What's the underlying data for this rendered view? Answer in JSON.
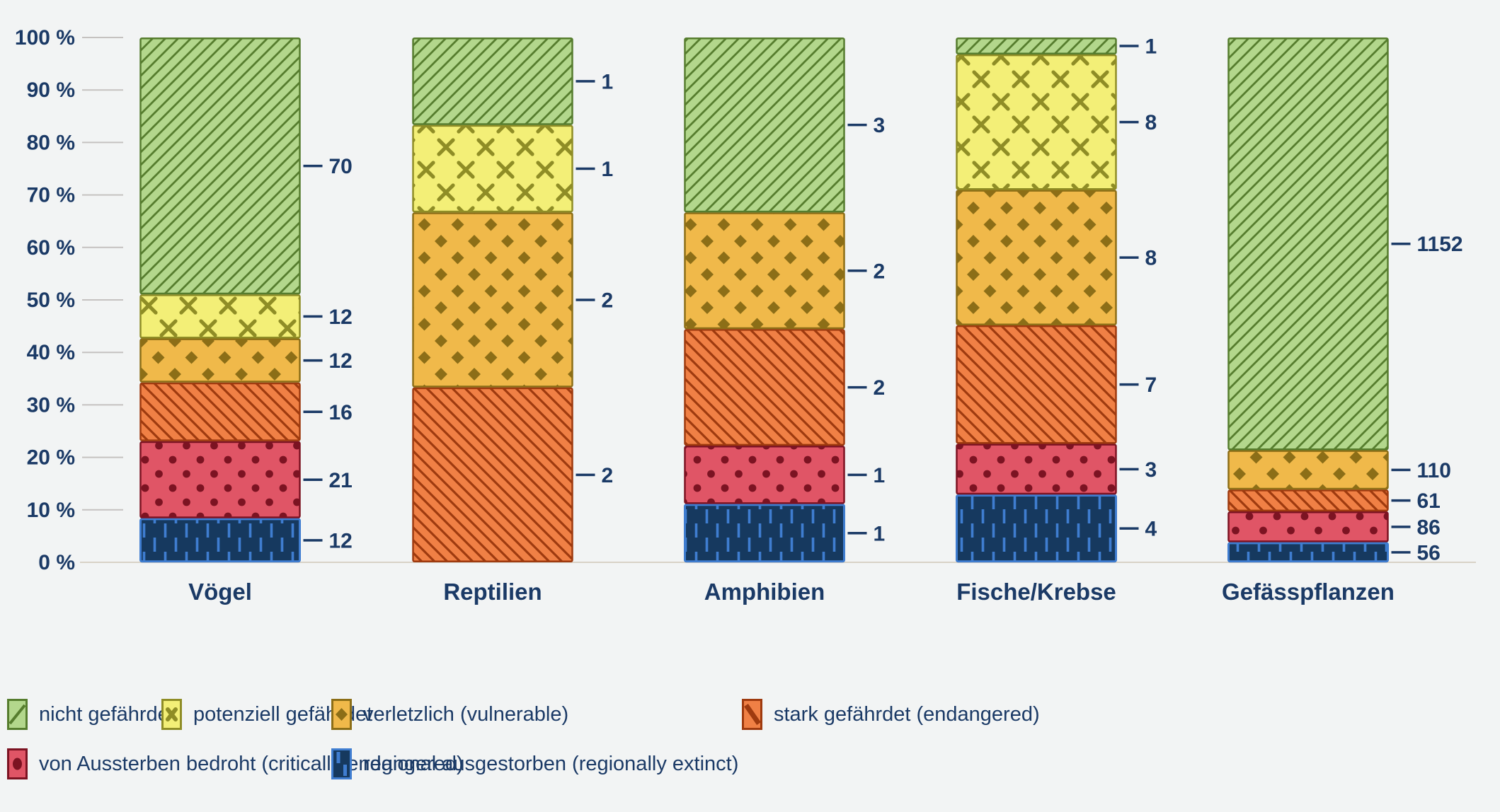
{
  "page": {
    "background": "#f2f4f4",
    "text_color": "#1b3a66",
    "baseline_color": "#d8d2c6",
    "tick_color": "#c5c2c0"
  },
  "chart_data": {
    "type": "bar",
    "subtype": "stacked_percent_column",
    "title": "",
    "xlabel": "",
    "ylabel": "",
    "grid": "short-ticks-left",
    "legend_position": "bottom",
    "y_axis": {
      "min": 0,
      "max": 100,
      "tick_labels": [
        "0 %",
        "10 %",
        "20 %",
        "30 %",
        "40 %",
        "50 %",
        "60 %",
        "70 %",
        "80 %",
        "90 %",
        "100 %"
      ]
    },
    "categories": [
      "Vögel",
      "Reptilien",
      "Amphibien",
      "Fische/Krebse",
      "Gefässpflanzen"
    ],
    "series": [
      {
        "name": "nicht gefährdet",
        "pattern": "diag-slash",
        "fill": "#b3d78c",
        "stroke": "#567d2e",
        "values": [
          70,
          1,
          3,
          1,
          1152
        ]
      },
      {
        "name": "potenziell gefährdet",
        "pattern": "cross-x",
        "fill": "#f3ef77",
        "stroke": "#8f8d26",
        "values": [
          12,
          1,
          0,
          8,
          0
        ]
      },
      {
        "name": "verletzlich (vulnerable)",
        "pattern": "diamond",
        "fill": "#f0b94a",
        "stroke": "#8c6e17",
        "values": [
          12,
          2,
          2,
          8,
          110
        ]
      },
      {
        "name": "stark gefährdet (endangered)",
        "pattern": "diag-backslash",
        "fill": "#f08045",
        "stroke": "#9e3a0f",
        "values": [
          16,
          2,
          2,
          7,
          61
        ]
      },
      {
        "name": "von Aussterben bedroht (critically endangered)",
        "pattern": "dots",
        "fill": "#e05566",
        "stroke": "#7c1322",
        "values": [
          21,
          0,
          1,
          3,
          86
        ]
      },
      {
        "name": "regional ausgestorben (regionally extinct)",
        "pattern": "vert-dash",
        "fill": "#16395f",
        "stroke": "#3f7dd0",
        "values": [
          12,
          0,
          1,
          4,
          56
        ]
      }
    ],
    "segment_value_labels": {
      "Vögel": [
        70,
        12,
        12,
        16,
        21,
        12
      ],
      "Reptilien": [
        1,
        1,
        2,
        2
      ],
      "Amphibien": [
        3,
        2,
        2,
        1,
        1
      ],
      "Fische/Krebse": [
        1,
        8,
        8,
        7,
        3,
        4
      ],
      "Gefässpflanzen": [
        1152,
        110,
        61,
        86,
        56
      ]
    }
  }
}
